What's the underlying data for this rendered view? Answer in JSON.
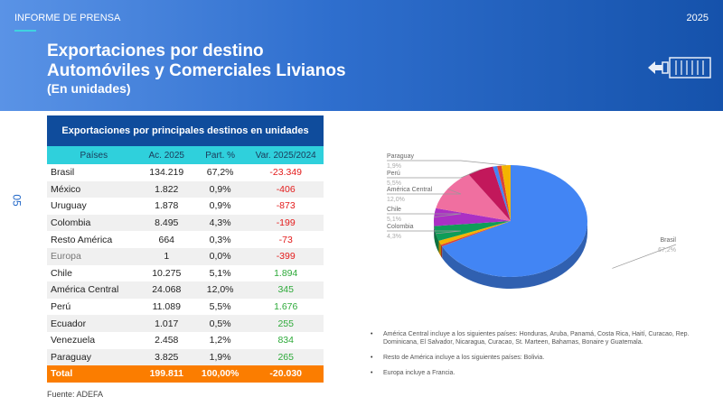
{
  "header": {
    "kicker": "INFORME DE PRENSA",
    "year": "2025",
    "title_line1": "Exportaciones por destino",
    "title_line2": "Automóviles y Comerciales Livianos",
    "subtitle": "(En unidades)",
    "icon": "container-export-icon"
  },
  "page_number": "05",
  "table": {
    "caption": "Exportaciones por principales destinos en unidades",
    "headers": [
      "Países",
      "Ac. 2025",
      "Part. %",
      "Var. 2025/2024"
    ],
    "rows": [
      [
        "Brasil",
        "134.219",
        "67,2%",
        "-23.349"
      ],
      [
        "México",
        "1.822",
        "0,9%",
        "-406"
      ],
      [
        "Uruguay",
        "1.878",
        "0,9%",
        "-873"
      ],
      [
        "Colombia",
        "8.495",
        "4,3%",
        "-199"
      ],
      [
        "Resto América",
        "664",
        "0,3%",
        "-73"
      ],
      [
        "Europa",
        "1",
        "0,0%",
        "-399"
      ],
      [
        "Chile",
        "10.275",
        "5,1%",
        "1.894"
      ],
      [
        "América Central",
        "24.068",
        "12,0%",
        "345"
      ],
      [
        "Perú",
        "11.089",
        "5,5%",
        "1.676"
      ],
      [
        "Ecuador",
        "1.017",
        "0,5%",
        "255"
      ],
      [
        "Venezuela",
        "2.458",
        "1,2%",
        "834"
      ],
      [
        "Paraguay",
        "3.825",
        "1,9%",
        "265"
      ]
    ],
    "total": [
      "Total",
      "199.811",
      "100,00%",
      "-20.030"
    ]
  },
  "source": "Fuente: ADEFA",
  "chart_data": {
    "type": "pie",
    "style": "3d",
    "slices": [
      {
        "name": "Brasil",
        "value": 67.2,
        "label": "67,2%",
        "color": "#4285f4",
        "labeled": true
      },
      {
        "name": "Ecuador",
        "value": 0.5,
        "color": "#db4437",
        "labeled": false
      },
      {
        "name": "Venezuela",
        "value": 1.2,
        "color": "#f4b400",
        "labeled": false
      },
      {
        "name": "Colombia",
        "value": 4.3,
        "label": "4,3%",
        "color": "#0f9d58",
        "labeled": true
      },
      {
        "name": "Chile",
        "value": 5.1,
        "label": "5,1%",
        "color": "#ab30c4",
        "labeled": true
      },
      {
        "name": "América Central",
        "value": 12.0,
        "label": "12,0%",
        "color": "#f06fa0",
        "labeled": true
      },
      {
        "name": "Perú",
        "value": 5.5,
        "label": "5,5%",
        "color": "#c2185b",
        "labeled": true
      },
      {
        "name": "México",
        "value": 0.9,
        "color": "#4285f4",
        "labeled": false
      },
      {
        "name": "Uruguay",
        "value": 0.9,
        "color": "#db4437",
        "labeled": false
      },
      {
        "name": "Paraguay",
        "value": 1.9,
        "label": "1,9%",
        "color": "#f4b400",
        "labeled": true
      }
    ]
  },
  "notes": [
    "América Central incluye a los siguientes países: Honduras, Aruba, Panamá,  Costa Rica, Haití, Curacao, Rep. Dominicana, El Salvador, Nicaragua, Curacao, St. Marteen, Bahamas, Bonaire y Guatemala.",
    "Resto de América incluye a los siguientes países: Bolivia.",
    "Europa  incluye a Francia."
  ]
}
